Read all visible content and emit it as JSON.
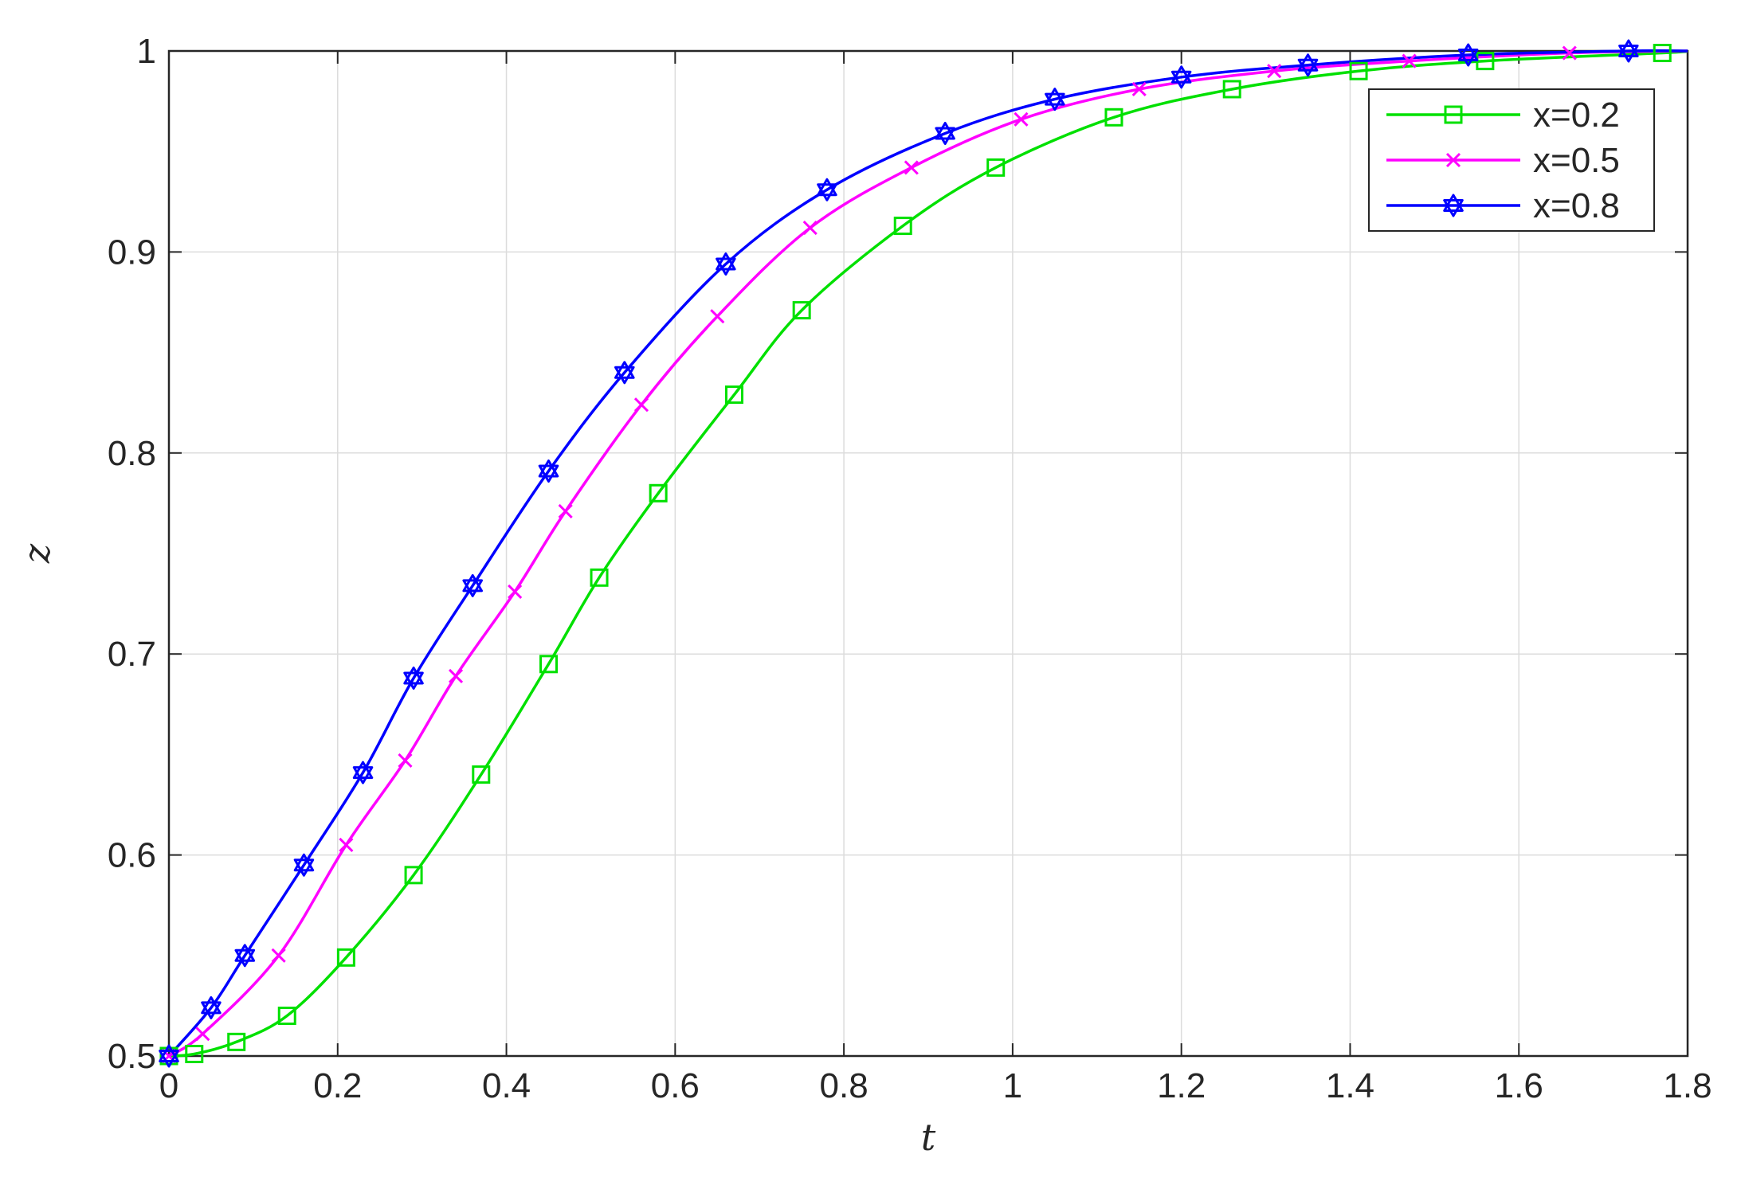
{
  "chart_data": {
    "type": "line",
    "xlabel": "t",
    "ylabel": "z",
    "xlim": [
      0,
      1.8
    ],
    "ylim": [
      0.5,
      1.0
    ],
    "xticks": [
      0,
      0.2,
      0.4,
      0.6,
      0.8,
      1,
      1.2,
      1.4,
      1.6,
      1.8
    ],
    "xtick_labels": [
      "0",
      "0.2",
      "0.4",
      "0.6",
      "0.8",
      "1",
      "1.2",
      "1.4",
      "1.6",
      "1.8"
    ],
    "yticks": [
      0.5,
      0.6,
      0.7,
      0.8,
      0.9,
      1.0
    ],
    "ytick_labels": [
      "0.5",
      "0.6",
      "0.7",
      "0.8",
      "0.9",
      "1"
    ],
    "grid": true,
    "legend_position": "top-right",
    "series": [
      {
        "name": "x=0.2",
        "color": "#00e000",
        "marker": "square",
        "x": [
          0,
          0.03,
          0.08,
          0.14,
          0.21,
          0.29,
          0.37,
          0.45,
          0.51,
          0.58,
          0.67,
          0.75,
          0.87,
          0.98,
          1.12,
          1.26,
          1.41,
          1.56,
          1.77
        ],
        "y": [
          0.5,
          0.501,
          0.507,
          0.52,
          0.549,
          0.59,
          0.64,
          0.695,
          0.738,
          0.78,
          0.829,
          0.871,
          0.913,
          0.942,
          0.967,
          0.981,
          0.99,
          0.995,
          0.999
        ]
      },
      {
        "name": "x=0.5",
        "color": "#ff00ff",
        "marker": "x",
        "x": [
          0,
          0.04,
          0.13,
          0.21,
          0.28,
          0.34,
          0.41,
          0.47,
          0.56,
          0.65,
          0.76,
          0.88,
          1.01,
          1.15,
          1.31,
          1.47,
          1.66
        ],
        "y": [
          0.5,
          0.511,
          0.55,
          0.605,
          0.647,
          0.689,
          0.731,
          0.771,
          0.824,
          0.868,
          0.912,
          0.942,
          0.966,
          0.981,
          0.99,
          0.995,
          0.999
        ]
      },
      {
        "name": "x=0.8",
        "color": "#0000ff",
        "marker": "hexagram",
        "x": [
          0,
          0.05,
          0.09,
          0.16,
          0.23,
          0.29,
          0.36,
          0.45,
          0.54,
          0.66,
          0.78,
          0.92,
          1.05,
          1.2,
          1.35,
          1.54,
          1.73
        ],
        "y": [
          0.5,
          0.524,
          0.55,
          0.595,
          0.641,
          0.688,
          0.734,
          0.791,
          0.84,
          0.894,
          0.931,
          0.959,
          0.976,
          0.987,
          0.993,
          0.998,
          1.0
        ]
      }
    ]
  }
}
